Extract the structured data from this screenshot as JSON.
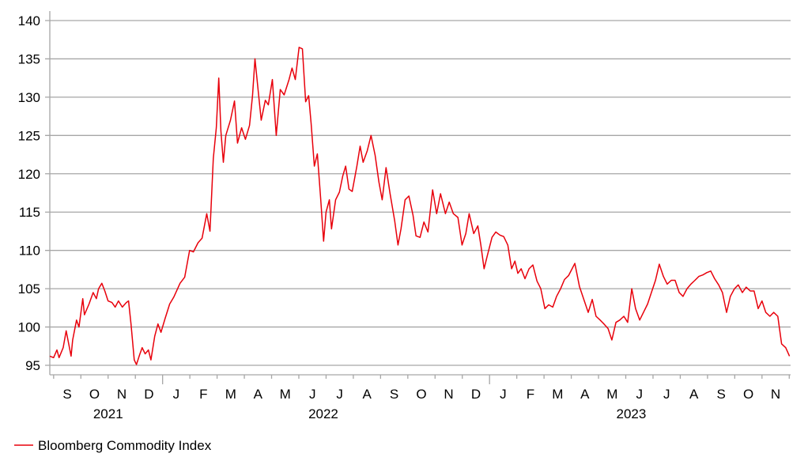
{
  "chart_data": {
    "type": "line",
    "title": "",
    "xlabel": "",
    "ylabel": "",
    "x_unit": "months since 2021-09-01",
    "ylim": [
      95,
      140
    ],
    "yticks": [
      95,
      100,
      105,
      110,
      115,
      120,
      125,
      130,
      135,
      140
    ],
    "grid": "horizontal",
    "legend_position": "bottom-left",
    "month_labels": [
      "S",
      "O",
      "N",
      "D",
      "J",
      "F",
      "M",
      "A",
      "M",
      "J",
      "J",
      "A",
      "S",
      "O",
      "N",
      "D",
      "J",
      "F",
      "M",
      "A",
      "M",
      "J",
      "J",
      "A",
      "S",
      "O",
      "N"
    ],
    "year_labels": [
      {
        "label": "2021",
        "x": 2
      },
      {
        "label": "2022",
        "x": 9.9
      },
      {
        "label": "2023",
        "x": 21.2
      }
    ],
    "year_boundaries": [
      4,
      16
    ],
    "series": [
      {
        "name": "Bloomberg Commodity Index",
        "color": "#e8000b",
        "points": [
          [
            -0.14,
            96.2
          ],
          [
            0,
            96
          ],
          [
            0.12,
            97
          ],
          [
            0.2,
            96
          ],
          [
            0.35,
            97.3
          ],
          [
            0.46,
            99.5
          ],
          [
            0.64,
            96.2
          ],
          [
            0.7,
            98.3
          ],
          [
            0.84,
            100.9
          ],
          [
            0.93,
            100
          ],
          [
            1.07,
            103.7
          ],
          [
            1.13,
            101.6
          ],
          [
            1.3,
            103
          ],
          [
            1.45,
            104.5
          ],
          [
            1.57,
            103.7
          ],
          [
            1.65,
            105
          ],
          [
            1.77,
            105.7
          ],
          [
            1.88,
            104.7
          ],
          [
            2.0,
            103.4
          ],
          [
            2.14,
            103.2
          ],
          [
            2.26,
            102.6
          ],
          [
            2.38,
            103.4
          ],
          [
            2.52,
            102.6
          ],
          [
            2.67,
            103.2
          ],
          [
            2.75,
            103.4
          ],
          [
            2.84,
            100.4
          ],
          [
            2.96,
            95.7
          ],
          [
            3.04,
            95.1
          ],
          [
            3.16,
            96.4
          ],
          [
            3.25,
            97.3
          ],
          [
            3.36,
            96.5
          ],
          [
            3.48,
            97
          ],
          [
            3.57,
            95.7
          ],
          [
            3.71,
            98.8
          ],
          [
            3.83,
            100.4
          ],
          [
            3.94,
            99.3
          ],
          [
            4.09,
            101.1
          ],
          [
            4.26,
            103
          ],
          [
            4.41,
            103.9
          ],
          [
            4.64,
            105.7
          ],
          [
            4.81,
            106.5
          ],
          [
            4.99,
            110
          ],
          [
            5.13,
            109.8
          ],
          [
            5.3,
            111
          ],
          [
            5.45,
            111.6
          ],
          [
            5.62,
            114.8
          ],
          [
            5.74,
            112.5
          ],
          [
            5.86,
            122
          ],
          [
            5.97,
            126
          ],
          [
            6.06,
            132.5
          ],
          [
            6.14,
            125.6
          ],
          [
            6.23,
            121.5
          ],
          [
            6.32,
            125
          ],
          [
            6.49,
            127
          ],
          [
            6.64,
            129.5
          ],
          [
            6.75,
            124
          ],
          [
            6.9,
            126
          ],
          [
            7.04,
            124.5
          ],
          [
            7.19,
            126.3
          ],
          [
            7.3,
            130.2
          ],
          [
            7.39,
            135
          ],
          [
            7.51,
            130.8
          ],
          [
            7.62,
            127
          ],
          [
            7.77,
            129.6
          ],
          [
            7.88,
            129
          ],
          [
            8.03,
            132.3
          ],
          [
            8.17,
            125
          ],
          [
            8.32,
            131
          ],
          [
            8.46,
            130.3
          ],
          [
            8.64,
            132.3
          ],
          [
            8.75,
            133.8
          ],
          [
            8.87,
            132.3
          ],
          [
            9.01,
            136.5
          ],
          [
            9.13,
            136.3
          ],
          [
            9.25,
            129.4
          ],
          [
            9.36,
            130.2
          ],
          [
            9.45,
            126.6
          ],
          [
            9.57,
            121
          ],
          [
            9.68,
            122.6
          ],
          [
            9.8,
            116.9
          ],
          [
            9.91,
            111.2
          ],
          [
            10,
            115
          ],
          [
            10.12,
            116.6
          ],
          [
            10.2,
            112.8
          ],
          [
            10.35,
            116.6
          ],
          [
            10.49,
            117.6
          ],
          [
            10.61,
            119.7
          ],
          [
            10.72,
            121
          ],
          [
            10.84,
            118
          ],
          [
            10.96,
            117.7
          ],
          [
            11.13,
            121
          ],
          [
            11.25,
            123.6
          ],
          [
            11.36,
            121.5
          ],
          [
            11.51,
            123
          ],
          [
            11.65,
            125
          ],
          [
            11.8,
            122.4
          ],
          [
            11.94,
            118.9
          ],
          [
            12.06,
            116.6
          ],
          [
            12.2,
            120.8
          ],
          [
            12.35,
            117.4
          ],
          [
            12.52,
            113.8
          ],
          [
            12.64,
            110.7
          ],
          [
            12.75,
            112.8
          ],
          [
            12.9,
            116.6
          ],
          [
            13.04,
            117.1
          ],
          [
            13.19,
            114.6
          ],
          [
            13.3,
            111.9
          ],
          [
            13.45,
            111.7
          ],
          [
            13.59,
            113.7
          ],
          [
            13.74,
            112.4
          ],
          [
            13.91,
            117.9
          ],
          [
            14.06,
            114.8
          ],
          [
            14.2,
            117.4
          ],
          [
            14.38,
            114.8
          ],
          [
            14.52,
            116.3
          ],
          [
            14.67,
            114.8
          ],
          [
            14.84,
            114.3
          ],
          [
            14.99,
            110.7
          ],
          [
            15.13,
            112.2
          ],
          [
            15.25,
            114.8
          ],
          [
            15.42,
            112.2
          ],
          [
            15.57,
            113.2
          ],
          [
            15.68,
            110.7
          ],
          [
            15.8,
            107.6
          ],
          [
            15.91,
            109.2
          ],
          [
            16.09,
            111.7
          ],
          [
            16.23,
            112.4
          ],
          [
            16.38,
            112
          ],
          [
            16.52,
            111.8
          ],
          [
            16.67,
            110.7
          ],
          [
            16.81,
            107.6
          ],
          [
            16.93,
            108.6
          ],
          [
            17.04,
            107
          ],
          [
            17.16,
            107.6
          ],
          [
            17.3,
            106.3
          ],
          [
            17.45,
            107.6
          ],
          [
            17.59,
            108.1
          ],
          [
            17.74,
            106
          ],
          [
            17.88,
            105
          ],
          [
            18.03,
            102.4
          ],
          [
            18.17,
            102.9
          ],
          [
            18.32,
            102.6
          ],
          [
            18.46,
            104
          ],
          [
            18.61,
            105
          ],
          [
            18.75,
            106.2
          ],
          [
            18.9,
            106.7
          ],
          [
            19.13,
            108.3
          ],
          [
            19.3,
            105.3
          ],
          [
            19.48,
            103.4
          ],
          [
            19.62,
            101.9
          ],
          [
            19.77,
            103.6
          ],
          [
            19.91,
            101.4
          ],
          [
            20.06,
            100.9
          ],
          [
            20.2,
            100.4
          ],
          [
            20.35,
            99.8
          ],
          [
            20.49,
            98.3
          ],
          [
            20.64,
            100.6
          ],
          [
            20.78,
            100.9
          ],
          [
            20.93,
            101.4
          ],
          [
            21.07,
            100.6
          ],
          [
            21.22,
            105
          ],
          [
            21.36,
            102.4
          ],
          [
            21.51,
            100.9
          ],
          [
            21.65,
            101.9
          ],
          [
            21.8,
            103
          ],
          [
            21.94,
            104.5
          ],
          [
            22.09,
            106.1
          ],
          [
            22.23,
            108.2
          ],
          [
            22.38,
            106.6
          ],
          [
            22.52,
            105.6
          ],
          [
            22.67,
            106.1
          ],
          [
            22.81,
            106.1
          ],
          [
            22.96,
            104.5
          ],
          [
            23.1,
            104
          ],
          [
            23.25,
            105
          ],
          [
            23.39,
            105.6
          ],
          [
            23.54,
            106.1
          ],
          [
            23.68,
            106.6
          ],
          [
            23.83,
            106.8
          ],
          [
            23.97,
            107.1
          ],
          [
            24.12,
            107.3
          ],
          [
            24.26,
            106.3
          ],
          [
            24.41,
            105.5
          ],
          [
            24.55,
            104.5
          ],
          [
            24.7,
            101.9
          ],
          [
            24.84,
            104
          ],
          [
            24.99,
            105
          ],
          [
            25.13,
            105.5
          ],
          [
            25.28,
            104.5
          ],
          [
            25.42,
            105.2
          ],
          [
            25.57,
            104.7
          ],
          [
            25.71,
            104.7
          ],
          [
            25.86,
            102.4
          ],
          [
            26,
            103.4
          ],
          [
            26.14,
            101.9
          ],
          [
            26.29,
            101.4
          ],
          [
            26.43,
            101.9
          ],
          [
            26.58,
            101.4
          ],
          [
            26.72,
            97.8
          ],
          [
            26.87,
            97.3
          ],
          [
            27.01,
            96.2
          ]
        ]
      }
    ]
  }
}
